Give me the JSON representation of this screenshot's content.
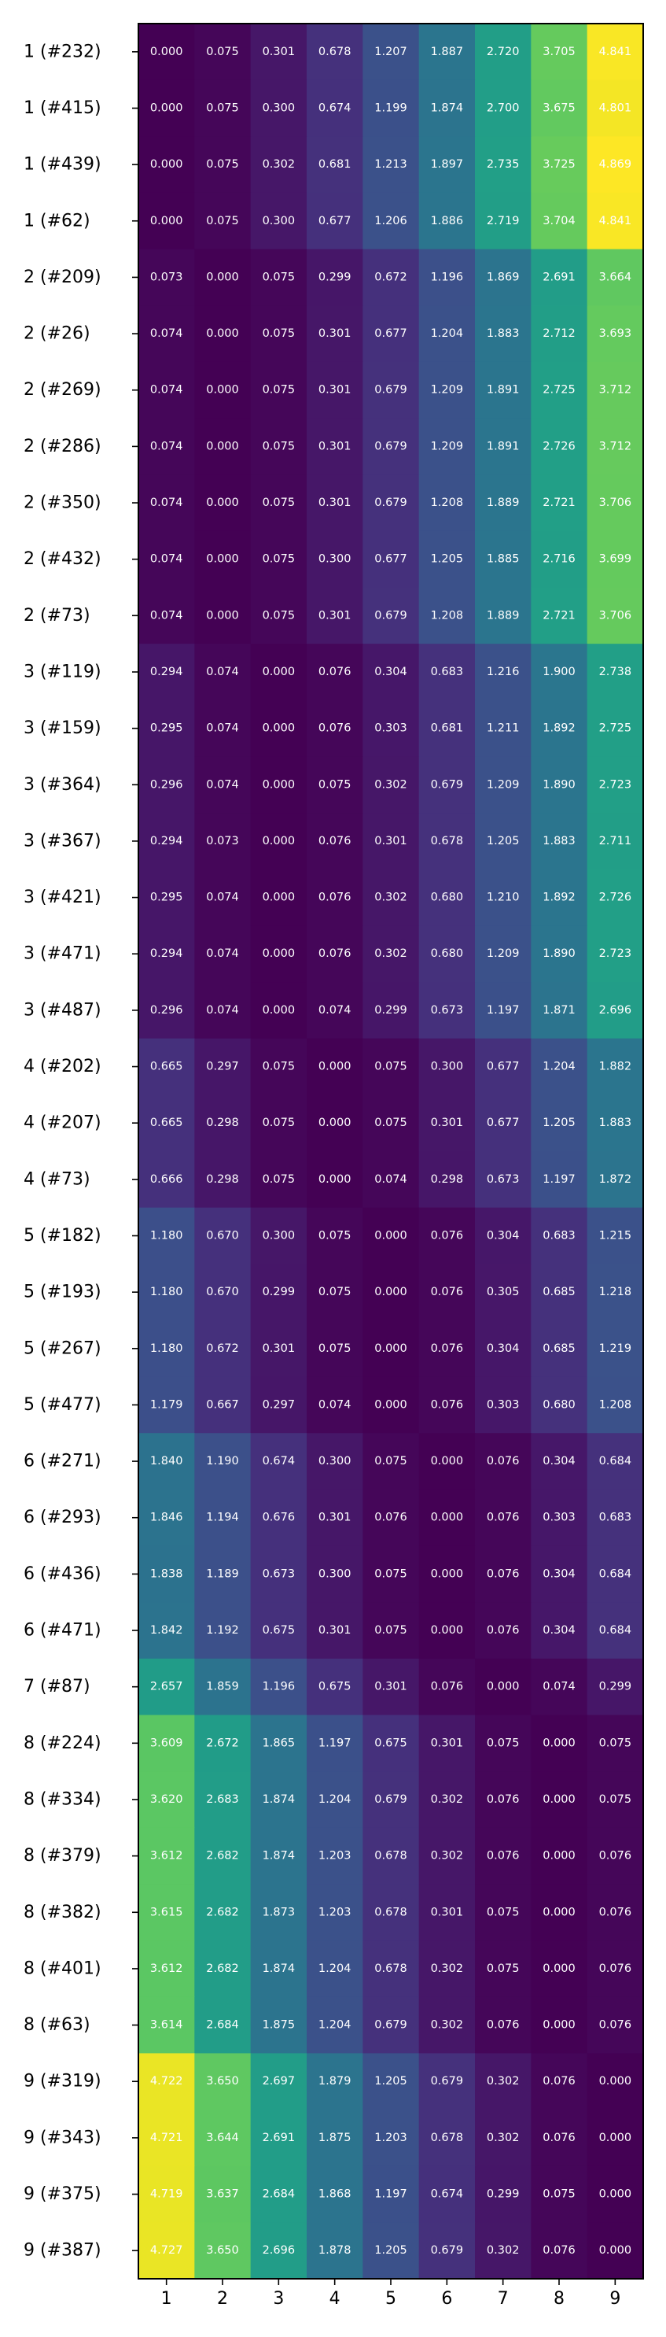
{
  "chart_data": {
    "type": "heatmap",
    "title": "",
    "xlabel": "",
    "ylabel": "",
    "colormap": "viridis",
    "vmin": 0,
    "vmax": 4.869,
    "grid": false,
    "x_categories": [
      "1",
      "2",
      "3",
      "4",
      "5",
      "6",
      "7",
      "8",
      "9"
    ],
    "y_categories": [
      "1 (#232)",
      "1 (#415)",
      "1 (#439)",
      "1 (#62)",
      "2 (#209)",
      "2 (#26)",
      "2 (#269)",
      "2 (#286)",
      "2 (#350)",
      "2 (#432)",
      "2 (#73)",
      "3 (#119)",
      "3 (#159)",
      "3 (#364)",
      "3 (#367)",
      "3 (#421)",
      "3 (#471)",
      "3 (#487)",
      "4 (#202)",
      "4 (#207)",
      "4 (#73)",
      "5 (#182)",
      "5 (#193)",
      "5 (#267)",
      "5 (#477)",
      "6 (#271)",
      "6 (#293)",
      "6 (#436)",
      "6 (#471)",
      "7 (#87)",
      "8 (#224)",
      "8 (#334)",
      "8 (#379)",
      "8 (#382)",
      "8 (#401)",
      "8 (#63)",
      "9 (#319)",
      "9 (#343)",
      "9 (#375)",
      "9 (#387)"
    ],
    "values": [
      [
        0.0,
        0.075,
        0.301,
        0.678,
        1.207,
        1.887,
        2.72,
        3.705,
        4.841
      ],
      [
        0.0,
        0.075,
        0.3,
        0.674,
        1.199,
        1.874,
        2.7,
        3.675,
        4.801
      ],
      [
        0.0,
        0.075,
        0.302,
        0.681,
        1.213,
        1.897,
        2.735,
        3.725,
        4.869
      ],
      [
        0.0,
        0.075,
        0.3,
        0.677,
        1.206,
        1.886,
        2.719,
        3.704,
        4.841
      ],
      [
        0.073,
        0.0,
        0.075,
        0.299,
        0.672,
        1.196,
        1.869,
        2.691,
        3.664
      ],
      [
        0.074,
        0.0,
        0.075,
        0.301,
        0.677,
        1.204,
        1.883,
        2.712,
        3.693
      ],
      [
        0.074,
        0.0,
        0.075,
        0.301,
        0.679,
        1.209,
        1.891,
        2.725,
        3.712
      ],
      [
        0.074,
        0.0,
        0.075,
        0.301,
        0.679,
        1.209,
        1.891,
        2.726,
        3.712
      ],
      [
        0.074,
        0.0,
        0.075,
        0.301,
        0.679,
        1.208,
        1.889,
        2.721,
        3.706
      ],
      [
        0.074,
        0.0,
        0.075,
        0.3,
        0.677,
        1.205,
        1.885,
        2.716,
        3.699
      ],
      [
        0.074,
        0.0,
        0.075,
        0.301,
        0.679,
        1.208,
        1.889,
        2.721,
        3.706
      ],
      [
        0.294,
        0.074,
        0.0,
        0.076,
        0.304,
        0.683,
        1.216,
        1.9,
        2.738
      ],
      [
        0.295,
        0.074,
        0.0,
        0.076,
        0.303,
        0.681,
        1.211,
        1.892,
        2.725
      ],
      [
        0.296,
        0.074,
        0.0,
        0.075,
        0.302,
        0.679,
        1.209,
        1.89,
        2.723
      ],
      [
        0.294,
        0.073,
        0.0,
        0.076,
        0.301,
        0.678,
        1.205,
        1.883,
        2.711
      ],
      [
        0.295,
        0.074,
        0.0,
        0.076,
        0.302,
        0.68,
        1.21,
        1.892,
        2.726
      ],
      [
        0.294,
        0.074,
        0.0,
        0.076,
        0.302,
        0.68,
        1.209,
        1.89,
        2.723
      ],
      [
        0.296,
        0.074,
        0.0,
        0.074,
        0.299,
        0.673,
        1.197,
        1.871,
        2.696
      ],
      [
        0.665,
        0.297,
        0.075,
        0.0,
        0.075,
        0.3,
        0.677,
        1.204,
        1.882
      ],
      [
        0.665,
        0.298,
        0.075,
        0.0,
        0.075,
        0.301,
        0.677,
        1.205,
        1.883
      ],
      [
        0.666,
        0.298,
        0.075,
        0.0,
        0.074,
        0.298,
        0.673,
        1.197,
        1.872
      ],
      [
        1.18,
        0.67,
        0.3,
        0.075,
        0.0,
        0.076,
        0.304,
        0.683,
        1.215
      ],
      [
        1.18,
        0.67,
        0.299,
        0.075,
        0.0,
        0.076,
        0.305,
        0.685,
        1.218
      ],
      [
        1.18,
        0.672,
        0.301,
        0.075,
        0.0,
        0.076,
        0.304,
        0.685,
        1.219
      ],
      [
        1.179,
        0.667,
        0.297,
        0.074,
        0.0,
        0.076,
        0.303,
        0.68,
        1.208
      ],
      [
        1.84,
        1.19,
        0.674,
        0.3,
        0.075,
        0.0,
        0.076,
        0.304,
        0.684
      ],
      [
        1.846,
        1.194,
        0.676,
        0.301,
        0.076,
        0.0,
        0.076,
        0.303,
        0.683
      ],
      [
        1.838,
        1.189,
        0.673,
        0.3,
        0.075,
        0.0,
        0.076,
        0.304,
        0.684
      ],
      [
        1.842,
        1.192,
        0.675,
        0.301,
        0.075,
        0.0,
        0.076,
        0.304,
        0.684
      ],
      [
        2.657,
        1.859,
        1.196,
        0.675,
        0.301,
        0.076,
        0.0,
        0.074,
        0.299
      ],
      [
        3.609,
        2.672,
        1.865,
        1.197,
        0.675,
        0.301,
        0.075,
        0.0,
        0.075
      ],
      [
        3.62,
        2.683,
        1.874,
        1.204,
        0.679,
        0.302,
        0.076,
        0.0,
        0.075
      ],
      [
        3.612,
        2.682,
        1.874,
        1.203,
        0.678,
        0.302,
        0.076,
        0.0,
        0.076
      ],
      [
        3.615,
        2.682,
        1.873,
        1.203,
        0.678,
        0.301,
        0.075,
        0.0,
        0.076
      ],
      [
        3.612,
        2.682,
        1.874,
        1.204,
        0.678,
        0.302,
        0.075,
        0.0,
        0.076
      ],
      [
        3.614,
        2.684,
        1.875,
        1.204,
        0.679,
        0.302,
        0.076,
        0.0,
        0.076
      ],
      [
        4.722,
        3.65,
        2.697,
        1.879,
        1.205,
        0.679,
        0.302,
        0.076,
        0.0
      ],
      [
        4.721,
        3.644,
        2.691,
        1.875,
        1.203,
        0.678,
        0.302,
        0.076,
        0.0
      ],
      [
        4.719,
        3.637,
        2.684,
        1.868,
        1.197,
        0.674,
        0.299,
        0.075,
        0.0
      ],
      [
        4.727,
        3.65,
        2.696,
        1.878,
        1.205,
        0.679,
        0.302,
        0.076,
        0.0
      ]
    ]
  }
}
